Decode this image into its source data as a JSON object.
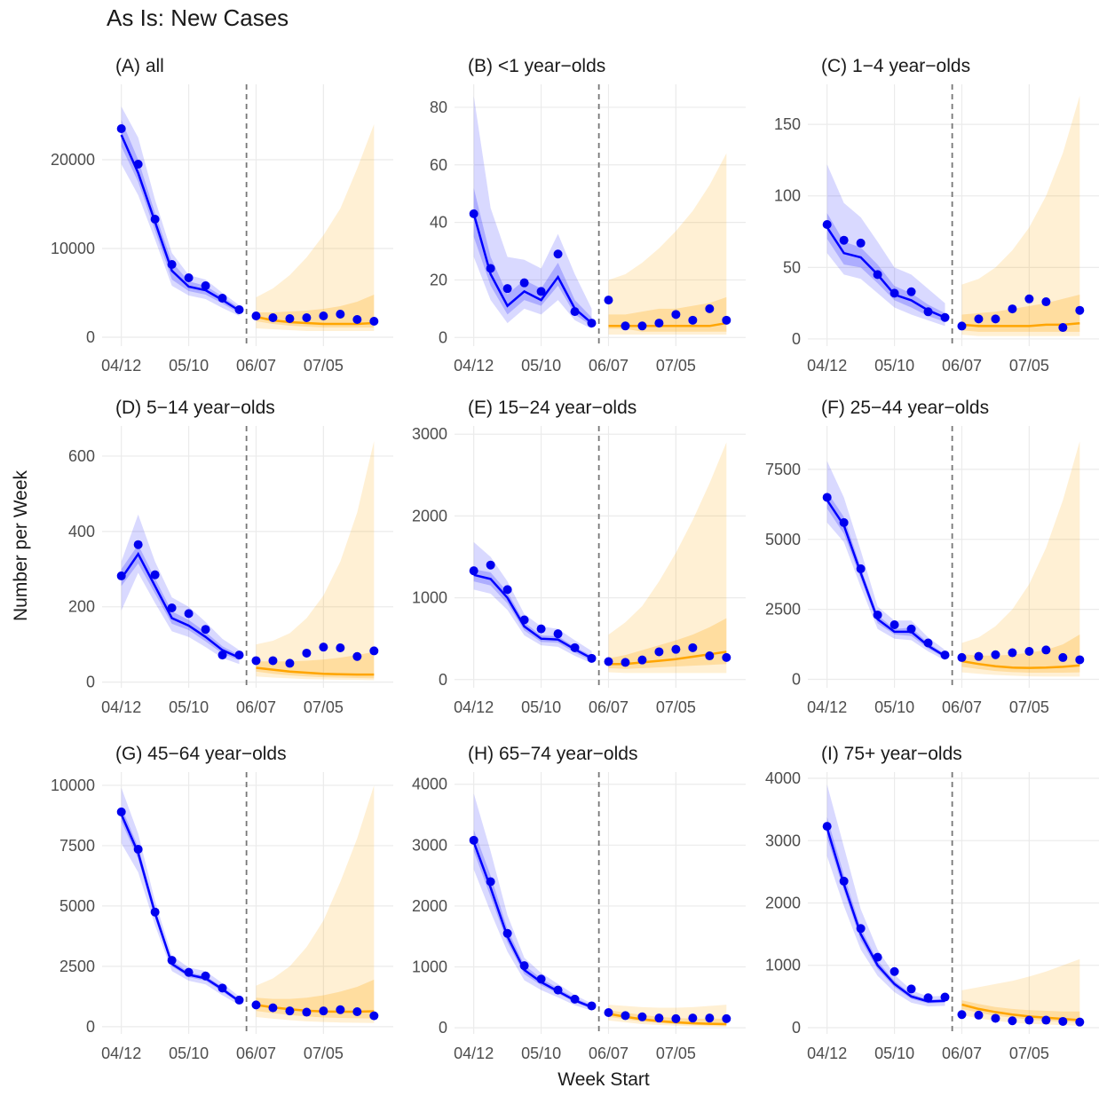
{
  "title": "As Is: New Cases",
  "xlabel": "Week Start",
  "ylabel": "Number per Week",
  "weeks": [
    "04/12",
    "04/19",
    "04/26",
    "05/03",
    "05/10",
    "05/17",
    "05/24",
    "05/31",
    "06/07",
    "06/14",
    "06/21",
    "06/28",
    "07/05",
    "07/12",
    "07/19",
    "07/26"
  ],
  "fit_weeks": [
    "04/12",
    "04/19",
    "04/26",
    "05/03",
    "05/10",
    "05/17",
    "05/24",
    "05/31"
  ],
  "projection_weeks": [
    "06/07",
    "06/14",
    "06/21",
    "06/28",
    "07/05",
    "07/12",
    "07/19",
    "07/26"
  ],
  "xticks": [
    "04/12",
    "05/10",
    "06/07",
    "07/05"
  ],
  "xlim": [
    "04/04",
    "08/03"
  ],
  "cutoff": "06/03",
  "fit_color": "#0000ff",
  "projection_color": "#ffa500",
  "point_color": "#0000ee",
  "chart_data": [
    {
      "type": "line",
      "title": "(A) all",
      "ylim": [
        -1000,
        28500
      ],
      "yticks": [
        0,
        10000,
        20000
      ],
      "observed": [
        23500,
        19500,
        13300,
        8200,
        6700,
        5800,
        4400,
        3100,
        2400,
        2200,
        2100,
        2200,
        2400,
        2600,
        2000,
        1800
      ],
      "fit": {
        "values": [
          22800,
          18500,
          13000,
          7500,
          5700,
          5300,
          4200,
          3000
        ],
        "lo50": [
          21500,
          17500,
          12000,
          6500,
          5200,
          4800,
          3800,
          2700
        ],
        "hi50": [
          24500,
          20000,
          14000,
          8500,
          6300,
          5800,
          4600,
          3300
        ],
        "lo95": [
          19500,
          16000,
          11000,
          5800,
          4700,
          4300,
          3300,
          2400
        ],
        "hi95": [
          26000,
          22500,
          15500,
          9500,
          7000,
          6500,
          5000,
          3600
        ]
      },
      "projection": {
        "values": [
          2300,
          1900,
          1700,
          1600,
          1500,
          1500,
          1500,
          1600
        ],
        "lo50": [
          1800,
          1500,
          1300,
          1200,
          1100,
          1100,
          1100,
          1100
        ],
        "hi50": [
          2800,
          2800,
          2900,
          3000,
          3200,
          3500,
          4000,
          4800
        ],
        "lo95": [
          1000,
          900,
          800,
          700,
          700,
          700,
          700,
          700
        ],
        "hi95": [
          4500,
          5500,
          7000,
          9000,
          11500,
          14500,
          19000,
          24000
        ]
      }
    },
    {
      "type": "line",
      "title": "(B) <1 year−olds",
      "ylim": [
        -3,
        88
      ],
      "yticks": [
        0,
        20,
        40,
        60,
        80
      ],
      "observed": [
        43,
        24,
        17,
        19,
        16,
        29,
        9,
        5,
        13,
        4,
        4,
        5,
        8,
        6,
        10,
        6
      ],
      "fit": {
        "values": [
          43,
          22,
          11,
          16,
          13,
          21,
          10,
          5
        ],
        "lo50": [
          35,
          18,
          8,
          13,
          11,
          18,
          8,
          4
        ],
        "hi50": [
          52,
          28,
          15,
          20,
          17,
          26,
          13,
          7
        ],
        "lo95": [
          28,
          13,
          5,
          10,
          8,
          13,
          6,
          3
        ],
        "hi95": [
          84,
          45,
          28,
          27,
          24,
          36,
          22,
          10
        ]
      },
      "projection": {
        "values": [
          4,
          4,
          4,
          4,
          4,
          4,
          4,
          5
        ],
        "lo50": [
          3,
          3,
          2,
          2,
          2,
          2,
          2,
          2
        ],
        "hi50": [
          8,
          8,
          9,
          10,
          10,
          11,
          12,
          14
        ],
        "lo95": [
          1,
          1,
          1,
          1,
          1,
          1,
          1,
          1
        ],
        "hi95": [
          20,
          22,
          26,
          31,
          37,
          44,
          53,
          64
        ]
      }
    },
    {
      "type": "line",
      "title": "(C) 1−4 year−olds",
      "ylim": [
        -5,
        178
      ],
      "yticks": [
        0,
        50,
        100,
        150
      ],
      "observed": [
        80,
        69,
        67,
        45,
        32,
        33,
        19,
        15,
        9,
        14,
        14,
        21,
        28,
        26,
        8,
        20
      ],
      "fit": {
        "values": [
          78,
          60,
          57,
          45,
          31,
          27,
          20,
          15
        ],
        "lo50": [
          70,
          52,
          50,
          39,
          27,
          22,
          16,
          12
        ],
        "hi50": [
          88,
          68,
          64,
          52,
          37,
          32,
          24,
          18
        ],
        "lo95": [
          60,
          45,
          42,
          32,
          22,
          17,
          13,
          9
        ],
        "hi95": [
          122,
          95,
          85,
          68,
          50,
          45,
          35,
          25
        ]
      },
      "projection": {
        "values": [
          10,
          9,
          9,
          9,
          9,
          10,
          10,
          11
        ],
        "lo50": [
          6,
          5,
          5,
          5,
          5,
          5,
          5,
          5
        ],
        "hi50": [
          17,
          18,
          19,
          21,
          23,
          25,
          28,
          31
        ],
        "lo95": [
          3,
          2,
          2,
          2,
          2,
          2,
          2,
          2
        ],
        "hi95": [
          38,
          42,
          50,
          62,
          78,
          100,
          130,
          170
        ]
      }
    },
    {
      "type": "line",
      "title": "(D) 5−14 year−olds",
      "ylim": [
        -15,
        680
      ],
      "yticks": [
        0,
        200,
        400,
        600
      ],
      "observed": [
        282,
        365,
        285,
        197,
        182,
        140,
        72,
        72,
        57,
        57,
        50,
        77,
        93,
        91,
        68,
        83
      ],
      "fit": {
        "values": [
          275,
          340,
          255,
          170,
          150,
          120,
          85,
          65
        ],
        "lo50": [
          255,
          315,
          235,
          155,
          138,
          108,
          76,
          58
        ],
        "hi50": [
          300,
          365,
          275,
          188,
          165,
          133,
          95,
          72
        ],
        "lo95": [
          190,
          290,
          210,
          135,
          120,
          93,
          64,
          48
        ],
        "hi95": [
          320,
          445,
          320,
          225,
          200,
          160,
          115,
          85
        ]
      },
      "projection": {
        "values": [
          38,
          33,
          28,
          25,
          22,
          21,
          20,
          20
        ],
        "lo50": [
          28,
          22,
          18,
          15,
          13,
          12,
          11,
          10
        ],
        "hi50": [
          55,
          55,
          55,
          57,
          60,
          65,
          72,
          80
        ],
        "lo95": [
          15,
          12,
          10,
          8,
          7,
          6,
          6,
          5
        ],
        "hi95": [
          100,
          110,
          130,
          170,
          230,
          320,
          450,
          640
        ]
      }
    },
    {
      "type": "line",
      "title": "(E) 15−24 year−olds",
      "ylim": [
        -100,
        3100
      ],
      "yticks": [
        0,
        1000,
        2000,
        3000
      ],
      "observed": [
        1330,
        1400,
        1100,
        730,
        620,
        560,
        390,
        260,
        220,
        210,
        240,
        340,
        370,
        390,
        290,
        270
      ],
      "fit": {
        "values": [
          1280,
          1230,
          1000,
          650,
          500,
          490,
          370,
          260
        ],
        "lo50": [
          1200,
          1150,
          930,
          600,
          460,
          450,
          330,
          230
        ],
        "hi50": [
          1350,
          1310,
          1070,
          700,
          540,
          530,
          400,
          290
        ],
        "lo95": [
          1100,
          1050,
          850,
          540,
          420,
          400,
          290,
          200
        ],
        "hi95": [
          1680,
          1500,
          1200,
          800,
          650,
          620,
          480,
          350
        ]
      },
      "projection": {
        "values": [
          190,
          190,
          210,
          230,
          250,
          280,
          310,
          340
        ],
        "lo50": [
          140,
          130,
          140,
          150,
          160,
          170,
          180,
          190
        ],
        "hi50": [
          260,
          300,
          360,
          420,
          480,
          550,
          640,
          750
        ],
        "lo95": [
          90,
          80,
          80,
          80,
          80,
          80,
          80,
          80
        ],
        "hi95": [
          550,
          700,
          900,
          1200,
          1550,
          1950,
          2400,
          2900
        ]
      }
    },
    {
      "type": "line",
      "title": "(F) 25−44 year−olds",
      "ylim": [
        -300,
        9050
      ],
      "yticks": [
        0,
        2500,
        5000,
        7500
      ],
      "observed": [
        6500,
        5600,
        3950,
        2300,
        1950,
        1800,
        1300,
        870,
        780,
        820,
        880,
        950,
        1000,
        1050,
        780,
        700
      ],
      "fit": {
        "values": [
          6400,
          5500,
          3800,
          2150,
          1700,
          1700,
          1200,
          830
        ],
        "lo50": [
          6100,
          5200,
          3600,
          2000,
          1600,
          1550,
          1100,
          760
        ],
        "hi50": [
          6700,
          5800,
          4000,
          2300,
          1800,
          1850,
          1300,
          900
        ],
        "lo95": [
          5600,
          4900,
          3300,
          1800,
          1450,
          1400,
          1000,
          680
        ],
        "hi95": [
          7800,
          6500,
          4600,
          2600,
          2100,
          2100,
          1500,
          1050
        ]
      },
      "projection": {
        "values": [
          650,
          550,
          470,
          420,
          410,
          420,
          450,
          500
        ],
        "lo50": [
          450,
          370,
          300,
          260,
          240,
          240,
          240,
          250
        ],
        "hi50": [
          900,
          850,
          850,
          880,
          950,
          1050,
          1250,
          1600
        ],
        "lo95": [
          250,
          200,
          160,
          130,
          110,
          100,
          100,
          100
        ],
        "hi95": [
          1300,
          1500,
          1900,
          2500,
          3400,
          4700,
          6400,
          8500
        ]
      }
    },
    {
      "type": "line",
      "title": "(G) 45−64 year−olds",
      "ylim": [
        -300,
        10550
      ],
      "yticks": [
        0,
        2500,
        5000,
        7500,
        10000
      ],
      "observed": [
        8900,
        7350,
        4750,
        2750,
        2250,
        2100,
        1600,
        1100,
        900,
        780,
        650,
        600,
        650,
        700,
        620,
        450
      ],
      "fit": {
        "values": [
          8800,
          7200,
          4700,
          2600,
          2150,
          2000,
          1550,
          1050
        ],
        "lo50": [
          8500,
          6950,
          4500,
          2500,
          2050,
          1900,
          1450,
          980
        ],
        "hi50": [
          9100,
          7450,
          4900,
          2750,
          2250,
          2100,
          1650,
          1130
        ],
        "lo95": [
          7600,
          6400,
          4200,
          2300,
          1900,
          1750,
          1300,
          900
        ],
        "hi95": [
          9900,
          8000,
          5200,
          2950,
          2450,
          2300,
          1800,
          1250
        ]
      },
      "projection": {
        "values": [
          900,
          800,
          720,
          660,
          630,
          620,
          620,
          640
        ],
        "lo50": [
          650,
          560,
          480,
          420,
          380,
          360,
          350,
          340
        ],
        "hi50": [
          1200,
          1150,
          1150,
          1200,
          1300,
          1450,
          1650,
          1950
        ],
        "lo95": [
          400,
          330,
          270,
          220,
          190,
          170,
          160,
          150
        ],
        "hi95": [
          1700,
          2000,
          2500,
          3300,
          4400,
          6000,
          7800,
          10000
        ]
      }
    },
    {
      "type": "line",
      "title": "(H) 65−74 year−olds",
      "ylim": [
        -100,
        4200
      ],
      "yticks": [
        0,
        1000,
        2000,
        3000,
        4000
      ],
      "observed": [
        3080,
        2400,
        1550,
        1020,
        800,
        620,
        470,
        360,
        250,
        200,
        180,
        160,
        150,
        160,
        160,
        150
      ],
      "fit": {
        "values": [
          3050,
          2300,
          1500,
          950,
          750,
          600,
          450,
          340
        ],
        "lo50": [
          2900,
          2150,
          1400,
          880,
          700,
          560,
          420,
          310
        ],
        "hi50": [
          3250,
          2500,
          1620,
          1030,
          810,
          650,
          490,
          370
        ],
        "lo95": [
          2600,
          1900,
          1250,
          780,
          620,
          500,
          370,
          280
        ],
        "hi95": [
          3850,
          2900,
          1850,
          1150,
          900,
          720,
          540,
          400
        ]
      },
      "projection": {
        "values": [
          230,
          180,
          140,
          110,
          90,
          75,
          65,
          60
        ],
        "lo50": [
          180,
          140,
          100,
          80,
          60,
          50,
          40,
          35
        ],
        "hi50": [
          290,
          250,
          210,
          180,
          160,
          150,
          150,
          150
        ],
        "lo95": [
          120,
          90,
          60,
          45,
          35,
          25,
          20,
          15
        ],
        "hi95": [
          380,
          360,
          340,
          330,
          330,
          340,
          360,
          380
        ]
      }
    },
    {
      "type": "line",
      "title": "(I) 75+ year−olds",
      "ylim": [
        -100,
        4100
      ],
      "yticks": [
        0,
        1000,
        2000,
        3000,
        4000
      ],
      "observed": [
        3230,
        2350,
        1590,
        1130,
        900,
        620,
        480,
        490,
        210,
        200,
        150,
        110,
        120,
        120,
        100,
        90
      ],
      "fit": {
        "values": [
          3200,
          2300,
          1500,
          1000,
          700,
          500,
          420,
          430
        ],
        "lo50": [
          3050,
          2200,
          1400,
          940,
          650,
          460,
          390,
          400
        ],
        "hi50": [
          3380,
          2450,
          1600,
          1070,
          750,
          540,
          450,
          460
        ],
        "lo95": [
          2750,
          1950,
          1250,
          830,
          570,
          400,
          340,
          350
        ],
        "hi95": [
          3900,
          2900,
          1900,
          1250,
          850,
          600,
          500,
          510
        ]
      },
      "projection": {
        "values": [
          370,
          300,
          250,
          210,
          180,
          160,
          140,
          120
        ],
        "lo50": [
          300,
          240,
          190,
          160,
          130,
          110,
          95,
          80
        ],
        "hi50": [
          440,
          380,
          330,
          300,
          280,
          270,
          260,
          260
        ],
        "lo95": [
          200,
          150,
          110,
          80,
          60,
          50,
          40,
          30
        ],
        "hi95": [
          600,
          650,
          700,
          750,
          820,
          900,
          1000,
          1100
        ]
      }
    }
  ]
}
